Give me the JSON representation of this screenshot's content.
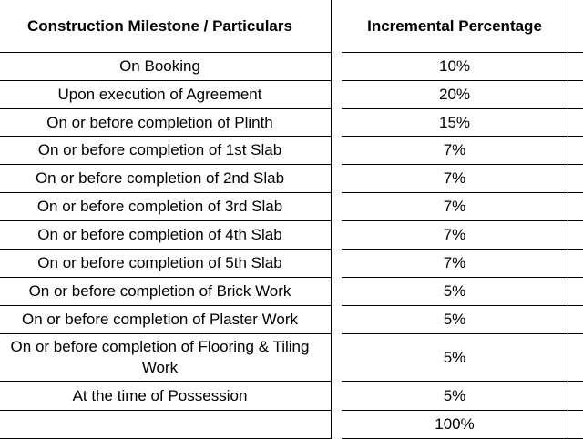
{
  "table": {
    "header": [
      "Construction Milestone / Particulars",
      "Incremental Percentage"
    ],
    "rows": [
      [
        "On Booking",
        "10%"
      ],
      [
        "Upon execution of Agreement",
        "20%"
      ],
      [
        "On or before completion of Plinth",
        "15%"
      ],
      [
        "On or before completion of 1st Slab",
        "7%"
      ],
      [
        "On or before completion of 2nd Slab",
        "7%"
      ],
      [
        "On or before completion of 3rd Slab",
        "7%"
      ],
      [
        "On or before completion of 4th Slab",
        "7%"
      ],
      [
        "On or before completion of 5th Slab",
        "7%"
      ],
      [
        "On or before completion of Brick Work",
        "5%"
      ],
      [
        "On or before completion of Plaster Work",
        "5%"
      ],
      [
        "On or before completion of Flooring & Tiling Work",
        "5%"
      ],
      [
        "At the time of Possession",
        "5%"
      ]
    ],
    "total": "100%"
  }
}
